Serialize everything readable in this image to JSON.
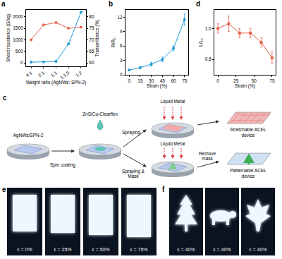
{
  "chart_data": [
    {
      "panel": "a",
      "type": "line",
      "categories": [
        "4:1",
        "2:1",
        "1:1",
        "1:1.5",
        "1:2"
      ],
      "x_label": "Weight ratio (AgNWs: SPN-2)",
      "y_label": "Sheet resistance (Ω/sq)",
      "y2_label": "Transmittance (%)",
      "ylim": [
        -150,
        2300
      ],
      "yticks": [
        0,
        500,
        1000,
        1500,
        2000
      ],
      "y2lim": [
        58.5,
        83
      ],
      "y2ticks": [
        60,
        65,
        70,
        75,
        80
      ],
      "grid": false,
      "series": [
        {
          "color": "#1f9bd7",
          "marker": "circle",
          "values": [
            30,
            45,
            65,
            820,
            2200
          ]
        },
        {
          "color": "#e8604c",
          "marker": "circle",
          "axis": "y2",
          "values": [
            70,
            76.5,
            77.5,
            75,
            75.5
          ]
        }
      ]
    },
    {
      "panel": "b",
      "type": "line",
      "x": [
        0,
        15,
        30,
        45,
        60,
        75
      ],
      "x_label": "Strain (%)",
      "y_label": "R/R₀",
      "xlim": [
        -5,
        80
      ],
      "xticks": [
        0,
        15,
        30,
        45,
        60,
        75
      ],
      "ylim": [
        0,
        13.5
      ],
      "yticks": [
        0,
        3,
        6,
        9,
        12
      ],
      "grid": false,
      "series": [
        {
          "color": "#1f9bd7",
          "marker": "circle",
          "values": [
            1,
            1.5,
            2.2,
            3.2,
            5.5,
            11.5
          ],
          "errors": [
            0.1,
            0.2,
            0.4,
            0.5,
            0.5,
            1.2
          ]
        }
      ]
    },
    {
      "panel": "d",
      "type": "line",
      "x": [
        0,
        15,
        30,
        45,
        60,
        75
      ],
      "x_label": "Strain (%)",
      "y_label": "L/L₀",
      "xlim": [
        -5,
        80
      ],
      "xticks": [
        0,
        25,
        50,
        75
      ],
      "ylim": [
        0.7,
        1.12
      ],
      "yticks": [
        0.8,
        {
          "value": 1,
          "label": "1.0"
        }
      ],
      "grid": false,
      "series": [
        {
          "color": "#e8604c",
          "marker": "square",
          "values": [
            1.0,
            1.03,
            0.97,
            0.97,
            0.91,
            0.81
          ],
          "errors": [
            0.03,
            0.05,
            0.03,
            0.03,
            0.03,
            0.04
          ]
        }
      ]
    }
  ],
  "diagram": {
    "panel": "c",
    "substrate": "AgNWs/SPN-2",
    "step": "Spin coating",
    "ink": "ZnS/Cu-Clearflex",
    "branches": [
      {
        "method": "Spraying",
        "material": "Liquid Metal",
        "result": "Stretchable ACEL device"
      },
      {
        "method": "Spraying & Mask",
        "material": "Liquid Metal",
        "post": "Remove mask",
        "result": "Patternable ACEL device"
      }
    ]
  },
  "photos": [
    {
      "panel": "e",
      "labels": [
        "ε = 0%",
        "ε = 25%",
        "ε = 50%",
        "ε = 75%"
      ]
    },
    {
      "panel": "f",
      "labels": [
        "ε = 40%",
        "ε = 40%",
        "ε = 40%"
      ]
    }
  ]
}
